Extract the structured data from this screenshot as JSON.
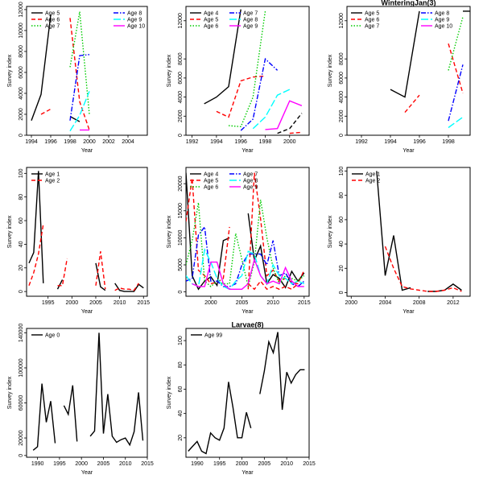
{
  "figure": {
    "background": "#ffffff"
  },
  "chart_data": [
    {
      "type": "line",
      "title": "",
      "xlabel": "Year",
      "ylabel": "Survey index",
      "xlim": [
        1993.5,
        2006
      ],
      "ylim": [
        0,
        12300
      ],
      "xticks": [
        1994,
        1996,
        1998,
        2000,
        2002,
        2004
      ],
      "yticks": [
        0,
        2000,
        4000,
        6000,
        8000,
        10000,
        12000
      ],
      "legend_position": "top-left",
      "series": [
        {
          "name": "Age 5",
          "color": "#000000",
          "dash": "solid",
          "x": [
            1994,
            1995,
            1996,
            1998,
            1999
          ],
          "y": [
            1400,
            3900,
            11500,
            1800,
            1300
          ]
        },
        {
          "name": "Age 6",
          "color": "#ff0000",
          "dash": "dashed",
          "x": [
            1995,
            1996,
            1998,
            1999,
            2000
          ],
          "y": [
            2000,
            2500,
            11200,
            3200,
            500
          ]
        },
        {
          "name": "Age 7",
          "color": "#00cc00",
          "dash": "dotted",
          "x": [
            1998,
            1999,
            2000
          ],
          "y": [
            6500,
            11800,
            2000
          ]
        },
        {
          "name": "Age 8",
          "color": "#0000ff",
          "dash": "dashdot",
          "x": [
            1998,
            1999,
            2000
          ],
          "y": [
            1400,
            7600,
            7700
          ]
        },
        {
          "name": "Age 9",
          "color": "#00ffff",
          "dash": "longdash",
          "x": [
            1998,
            1999,
            2000
          ],
          "y": [
            400,
            1900,
            4200
          ]
        },
        {
          "name": "Age 10",
          "color": "#ff00ff",
          "dash": "solid",
          "x": [
            1999,
            2000
          ],
          "y": [
            500,
            500
          ]
        }
      ]
    },
    {
      "type": "line",
      "title": "",
      "xlabel": "Year",
      "ylabel": "Survey index",
      "xlim": [
        1991.5,
        2001.6
      ],
      "ylim": [
        0,
        13500
      ],
      "xticks": [
        1992,
        1994,
        1996,
        1998,
        2000
      ],
      "yticks": [
        0,
        2000,
        4000,
        6000,
        8000,
        12000
      ],
      "legend_position": "top-right",
      "series": [
        {
          "name": "Age 4",
          "color": "#000000",
          "dash": "solid",
          "x": [
            1993,
            1994,
            1995,
            1996
          ],
          "y": [
            3300,
            4000,
            5100,
            13200
          ]
        },
        {
          "name": "Age 5",
          "color": "#ff0000",
          "dash": "dashed",
          "x": [
            1994,
            1995,
            1996,
            1997,
            1998
          ],
          "y": [
            2500,
            1900,
            5700,
            6100,
            6200
          ]
        },
        {
          "name": "Age 6",
          "color": "#00cc00",
          "dash": "dotted",
          "x": [
            1995,
            1996,
            1997,
            1998
          ],
          "y": [
            1000,
            900,
            4000,
            13000
          ]
        },
        {
          "name": "Age 7",
          "color": "#0000ff",
          "dash": "dashdot",
          "x": [
            1996,
            1997,
            1998,
            1999
          ],
          "y": [
            500,
            1700,
            8000,
            6800
          ]
        },
        {
          "name": "Age 8",
          "color": "#00ffff",
          "dash": "longdash",
          "x": [
            1997,
            1998,
            1999,
            2000
          ],
          "y": [
            700,
            1900,
            4200,
            4800
          ]
        },
        {
          "name": "Age 9",
          "color": "#ff00ff",
          "dash": "solid",
          "x": [
            1998,
            1999,
            2000,
            2001
          ],
          "y": [
            600,
            700,
            3600,
            3100
          ]
        },
        {
          "name": "",
          "color": "#000000",
          "dash": "dashed",
          "x": [
            1999,
            2000,
            2001
          ],
          "y": [
            200,
            700,
            2300
          ]
        },
        {
          "name": "",
          "color": "#ff0000",
          "dash": "dashed",
          "x": [
            2000,
            2001
          ],
          "y": [
            200,
            300
          ]
        }
      ]
    },
    {
      "type": "line",
      "title": "WinteringJan(3)",
      "xlabel": "Year",
      "ylabel": "Survey index",
      "xlim": [
        1991,
        1999.5
      ],
      "ylim": [
        0,
        13500
      ],
      "xticks": [
        1992,
        1994,
        1996,
        1998
      ],
      "yticks": [
        0,
        2000,
        4000,
        6000,
        8000,
        12000
      ],
      "legend_position": "top",
      "series": [
        {
          "name": "Age 5",
          "color": "#000000",
          "dash": "solid",
          "x": [
            1994,
            1995,
            1996
          ],
          "y": [
            4800,
            4000,
            13000
          ]
        },
        {
          "name": "Age 6",
          "color": "#ff0000",
          "dash": "dashed",
          "x": [
            1995,
            1996,
            1998,
            1999
          ],
          "y": [
            2400,
            4200,
            9600,
            4400
          ]
        },
        {
          "name": "Age 7",
          "color": "#00cc00",
          "dash": "dotted",
          "x": [
            1998,
            1999
          ],
          "y": [
            6800,
            12400
          ]
        },
        {
          "name": "Age 8",
          "color": "#0000ff",
          "dash": "dashdot",
          "x": [
            1998,
            1999
          ],
          "y": [
            1500,
            7400
          ]
        },
        {
          "name": "Age 9",
          "color": "#00ffff",
          "dash": "longdash",
          "x": [
            1998,
            1999
          ],
          "y": [
            800,
            1900
          ]
        },
        {
          "name": "Age 10",
          "color": "#ff00ff",
          "dash": "solid",
          "x": [],
          "y": []
        },
        {
          "name": "",
          "color": "#000000",
          "dash": "solid",
          "x": [
            1999,
            1999.5
          ],
          "y": [
            13000,
            13000
          ]
        }
      ]
    },
    {
      "type": "line",
      "title": "",
      "xlabel": "Year",
      "ylabel": "Survey index",
      "xlim": [
        1990.5,
        2015.8
      ],
      "ylim": [
        -4,
        105
      ],
      "xticks": [
        1995,
        2000,
        2005,
        2010,
        2015
      ],
      "yticks": [
        0,
        20,
        40,
        60,
        80,
        100
      ],
      "legend_position": "top",
      "series": [
        {
          "name": "Age 1",
          "color": "#000000",
          "dash": "solid",
          "x": [
            1991,
            1992,
            1993,
            1994,
            1997,
            1998,
            2005,
            2006,
            2007,
            2009,
            2010,
            2011,
            2012,
            2013,
            2014,
            2015
          ],
          "y": [
            24,
            33,
            102,
            7,
            2,
            10,
            24,
            4,
            1,
            7,
            1,
            0,
            0,
            0,
            6,
            3
          ]
        },
        {
          "name": "Age 2",
          "color": "#ff0000",
          "dash": "dashed",
          "x": [
            1991,
            1992,
            1993,
            1994,
            1997,
            1998,
            1999,
            2005,
            2006,
            2007,
            2009,
            2010,
            2011,
            2012,
            2013,
            2014
          ],
          "y": [
            5,
            16,
            32,
            57,
            5,
            5,
            28,
            5,
            34,
            2,
            1,
            3,
            2,
            2,
            1,
            7
          ]
        }
      ]
    },
    {
      "type": "line",
      "title": "",
      "xlabel": "Year",
      "ylabel": "Survey index",
      "xlim": [
        1996,
        2015.8
      ],
      "ylim": [
        -800,
        23000
      ],
      "xticks": [
        2000,
        2005,
        2010,
        2015
      ],
      "yticks": [
        0,
        5000,
        10000,
        15000,
        20000
      ],
      "legend_position": "top",
      "series": [
        {
          "name": "Age 4",
          "color": "#000000",
          "dash": "solid",
          "x": [
            1996,
            1997,
            1998,
            1999,
            2000,
            2001,
            2002,
            2003,
            2006,
            2007,
            2008,
            2009,
            2010,
            2011,
            2012,
            2013,
            2014,
            2015
          ],
          "y": [
            22000,
            3000,
            500,
            2000,
            2800,
            1200,
            9500,
            10000,
            14500,
            5800,
            8500,
            1500,
            3200,
            2500,
            800,
            3800,
            2000,
            3500
          ]
        },
        {
          "name": "Age 5",
          "color": "#ff0000",
          "dash": "dashed",
          "x": [
            1996,
            1997,
            1998,
            1999,
            2000,
            2001,
            2002,
            2003,
            2006,
            2007,
            2008,
            2009,
            2010,
            2011,
            2012,
            2013,
            2014,
            2015
          ],
          "y": [
            13000,
            21000,
            4000,
            3000,
            1500,
            1800,
            2500,
            12000,
            500,
            22000,
            13500,
            3000,
            4000,
            2000,
            2500,
            1800,
            1500,
            4000
          ]
        },
        {
          "name": "Age 6",
          "color": "#00cc00",
          "dash": "dotted",
          "x": [
            1996,
            1997,
            1998,
            1999,
            2000,
            2001,
            2002,
            2003,
            2004,
            2005,
            2006,
            2007,
            2008,
            2009,
            2010,
            2011,
            2012,
            2013,
            2014,
            2015
          ],
          "y": [
            5000,
            9500,
            16500,
            2000,
            1000,
            2000,
            1500,
            1500,
            10800,
            6000,
            1000,
            5500,
            17000,
            10000,
            4500,
            1500,
            3000,
            2500,
            2000,
            3000
          ]
        },
        {
          "name": "Age 7",
          "color": "#0000ff",
          "dash": "dashdot",
          "x": [
            1996,
            1997,
            1998,
            1999,
            2000,
            2001,
            2002,
            2003,
            2004,
            2005,
            2006,
            2007,
            2008,
            2009,
            2010,
            2011,
            2012,
            2013,
            2014,
            2015
          ],
          "y": [
            2000,
            2500,
            10500,
            12000,
            2000,
            2000,
            1000,
            1000,
            1500,
            5000,
            7000,
            7000,
            7000,
            5000,
            9500,
            3000,
            3500,
            1500,
            1000,
            2000
          ]
        },
        {
          "name": "Age 8",
          "color": "#00ffff",
          "dash": "longdash",
          "x": [
            1996,
            1997,
            1998,
            1999,
            2000,
            2001,
            2002,
            2003,
            2004,
            2005,
            2006,
            2007,
            2008,
            2009,
            2010,
            2011,
            2012,
            2013,
            2014,
            2015
          ],
          "y": [
            3000,
            1500,
            1000,
            7800,
            5500,
            2500,
            1000,
            500,
            2000,
            3000,
            7500,
            7000,
            3000,
            1500,
            5000,
            3000,
            2500,
            1500,
            2000,
            1500
          ]
        },
        {
          "name": "Age 9",
          "color": "#ff00ff",
          "dash": "solid",
          "x": [
            1997,
            1998,
            1999,
            2000,
            2001,
            2002,
            2003,
            2004,
            2005,
            2006,
            2007,
            2008,
            2009,
            2010,
            2011,
            2012,
            2013,
            2014,
            2015
          ],
          "y": [
            1500,
            1000,
            1000,
            5500,
            5500,
            1500,
            500,
            500,
            500,
            1500,
            6000,
            3000,
            1500,
            2000,
            1500,
            4500,
            2000,
            1000,
            1000
          ]
        },
        {
          "name": "",
          "color": "#ff0000",
          "dash": "dashed",
          "x": [
            2006,
            2007,
            2008,
            2009,
            2010,
            2011,
            2012,
            2013,
            2014
          ],
          "y": [
            1500,
            500,
            2000,
            500,
            1000,
            500,
            1000,
            500,
            1500
          ]
        }
      ]
    },
    {
      "type": "line",
      "title": "",
      "xlabel": "Year",
      "ylabel": "Survey index",
      "xlim": [
        1999.5,
        2014
      ],
      "ylim": [
        -3,
        103
      ],
      "xticks": [
        2000,
        2004,
        2008,
        2012
      ],
      "yticks": [
        0,
        20,
        40,
        60,
        80,
        100
      ],
      "legend_position": "top",
      "series": [
        {
          "name": "Age 1",
          "color": "#000000",
          "dash": "solid",
          "x": [
            2003,
            2004,
            2005,
            2006,
            2007,
            2009,
            2010,
            2011,
            2012,
            2013
          ],
          "y": [
            100,
            14,
            47,
            2,
            4,
            1,
            1,
            2,
            7,
            2
          ]
        },
        {
          "name": "Age 2",
          "color": "#ff0000",
          "dash": "dashed",
          "x": [
            2004,
            2005,
            2006,
            2007,
            2008,
            2009,
            2010,
            2011,
            2012,
            2013
          ],
          "y": [
            38,
            20,
            5,
            3,
            2,
            1,
            1,
            2,
            4,
            1
          ]
        }
      ]
    },
    {
      "type": "line",
      "title": "",
      "xlabel": "Year",
      "ylabel": "Survey index",
      "xlim": [
        1987.5,
        2015
      ],
      "ylim": [
        -2000,
        145000
      ],
      "xticks": [
        1990,
        1995,
        2000,
        2005,
        2010,
        2015
      ],
      "yticks": [
        0,
        20000,
        60000,
        100000,
        140000
      ],
      "legend_position": "top-left",
      "series": [
        {
          "name": "Age 0",
          "color": "#000000",
          "dash": "solid",
          "x": [
            1989,
            1990,
            1991,
            1992,
            1993,
            1994,
            1996,
            1997,
            1998,
            1999,
            2002,
            2003,
            2004,
            2005,
            2006,
            2007,
            2008,
            2009,
            2010,
            2011,
            2012,
            2013,
            2014
          ],
          "y": [
            6000,
            10000,
            82000,
            38000,
            62000,
            14000,
            57000,
            47000,
            80000,
            16000,
            22000,
            28000,
            140000,
            25000,
            70000,
            22000,
            15000,
            18000,
            20000,
            12000,
            27000,
            72000,
            17000
          ]
        }
      ]
    },
    {
      "type": "line",
      "title": "Larvae(8)",
      "xlabel": "Year",
      "ylabel": "Survey index",
      "xlim": [
        1987.5,
        2015
      ],
      "ylim": [
        4,
        110
      ],
      "xticks": [
        1990,
        1995,
        2000,
        2005,
        2010,
        2015
      ],
      "yticks": [
        20,
        40,
        60,
        80,
        100
      ],
      "legend_position": "top-left",
      "series": [
        {
          "name": "Age 99",
          "color": "#000000",
          "dash": "solid",
          "x": [
            1988,
            1989,
            1990,
            1991,
            1992,
            1993,
            1994,
            1995,
            1996,
            1997,
            1998,
            1999,
            2000,
            2001,
            2002,
            2004,
            2005,
            2006,
            2007,
            2008,
            2009,
            2010,
            2011,
            2012,
            2013,
            2014
          ],
          "y": [
            9,
            13,
            17,
            9,
            7,
            24,
            20,
            18,
            28,
            66,
            45,
            20,
            20,
            41,
            28,
            56,
            75,
            99,
            90,
            107,
            43,
            74,
            65,
            72,
            76,
            76
          ]
        }
      ]
    }
  ]
}
